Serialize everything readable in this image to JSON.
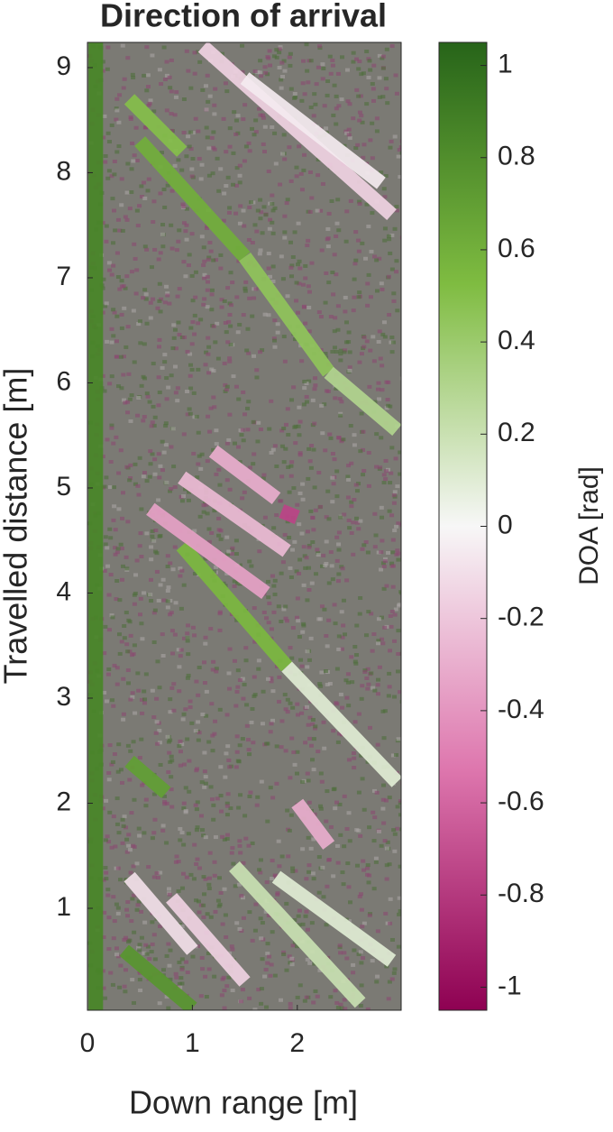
{
  "chart_data": {
    "type": "heatmap",
    "title": "Direction of arrival",
    "xlabel": "Down range [m]",
    "ylabel": "Travelled distance [m]",
    "xlim": [
      0,
      2.99
    ],
    "ylim": [
      0.03,
      9.24
    ],
    "xticks": [
      0,
      1,
      2
    ],
    "yticks": [
      1,
      2,
      3,
      4,
      5,
      6,
      7,
      8,
      9
    ],
    "colorbar": {
      "label": "DOA [rad]",
      "clim": [
        -1.05,
        1.05
      ],
      "ticks": [
        -1,
        -0.8,
        -0.6,
        -0.4,
        -0.2,
        0,
        0.2,
        0.4,
        0.6,
        0.8,
        1
      ],
      "colors": [
        "#8e0152",
        "#de77ae",
        "#f7f7f7",
        "#7fbc41",
        "#276419"
      ]
    },
    "streaks": [
      {
        "x": [
          0.08,
          0.08
        ],
        "y": [
          0.03,
          9.24
        ],
        "value": 0.85
      },
      {
        "x": [
          0.9,
          1.9
        ],
        "y": [
          4.45,
          3.3
        ],
        "value": 0.55
      },
      {
        "x": [
          1.9,
          2.95
        ],
        "y": [
          3.3,
          2.2
        ],
        "value": 0.1
      },
      {
        "x": [
          0.5,
          1.5
        ],
        "y": [
          8.3,
          7.2
        ],
        "value": 0.6
      },
      {
        "x": [
          1.5,
          2.3
        ],
        "y": [
          7.2,
          6.1
        ],
        "value": 0.45
      },
      {
        "x": [
          2.3,
          2.95
        ],
        "y": [
          6.1,
          5.55
        ],
        "value": 0.3
      },
      {
        "x": [
          1.1,
          2.9
        ],
        "y": [
          9.2,
          7.6
        ],
        "value": -0.15
      },
      {
        "x": [
          1.5,
          2.8
        ],
        "y": [
          8.9,
          7.9
        ],
        "value": -0.05
      },
      {
        "x": [
          0.6,
          1.7
        ],
        "y": [
          4.8,
          4.0
        ],
        "value": -0.35
      },
      {
        "x": [
          0.9,
          1.9
        ],
        "y": [
          5.1,
          4.4
        ],
        "value": -0.25
      },
      {
        "x": [
          1.2,
          1.8
        ],
        "y": [
          5.35,
          4.9
        ],
        "value": -0.3
      },
      {
        "x": [
          1.85,
          2.0
        ],
        "y": [
          4.78,
          4.72
        ],
        "value": -0.75
      },
      {
        "x": [
          0.4,
          0.9
        ],
        "y": [
          8.7,
          8.2
        ],
        "value": 0.5
      },
      {
        "x": [
          0.4,
          0.75
        ],
        "y": [
          2.4,
          2.1
        ],
        "value": 0.7
      },
      {
        "x": [
          0.35,
          1.0
        ],
        "y": [
          0.6,
          0.05
        ],
        "value": 0.75
      },
      {
        "x": [
          0.4,
          1.0
        ],
        "y": [
          1.3,
          0.6
        ],
        "value": -0.1
      },
      {
        "x": [
          0.8,
          1.5
        ],
        "y": [
          1.1,
          0.3
        ],
        "value": -0.15
      },
      {
        "x": [
          1.4,
          2.6
        ],
        "y": [
          1.4,
          0.1
        ],
        "value": 0.2
      },
      {
        "x": [
          1.8,
          2.9
        ],
        "y": [
          1.3,
          0.5
        ],
        "value": 0.1
      },
      {
        "x": [
          2.0,
          2.3
        ],
        "y": [
          2.0,
          1.6
        ],
        "value": -0.3
      }
    ]
  }
}
